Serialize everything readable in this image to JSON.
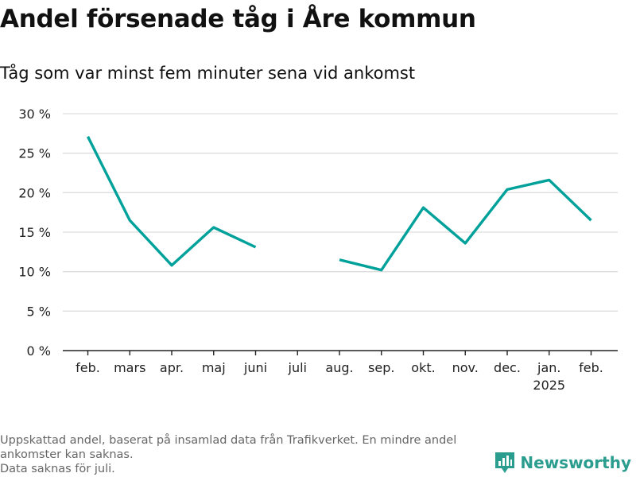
{
  "title": "Andel försenade tåg i Åre kommun",
  "subtitle": "Tåg som var minst fem minuter sena vid ankomst",
  "footnote": {
    "line1": "Uppskattad andel, baserat på insamlad data från Trafikverket. En mindre andel",
    "line2": "ankomster kan saknas.",
    "line3": "Data saknas för juli."
  },
  "brand": {
    "name": "Newsworthy",
    "icon": "bar-chart-logo-icon"
  },
  "colors": {
    "line": "#00a19a",
    "grid": "#dddddd",
    "axis": "#222222",
    "brand": "#2a9d8f"
  },
  "chart_data": {
    "type": "line",
    "categories": [
      "feb.",
      "mars",
      "apr.",
      "maj",
      "juni",
      "juli",
      "aug.",
      "sep.",
      "okt.",
      "nov.",
      "dec.",
      "jan.",
      "feb."
    ],
    "category_sublabels": [
      "",
      "",
      "",
      "",
      "",
      "",
      "",
      "",
      "",
      "",
      "",
      "2025",
      ""
    ],
    "series": [
      {
        "values": [
          27.1,
          16.5,
          10.8,
          15.6,
          13.1,
          null,
          11.5,
          10.2,
          18.1,
          13.6,
          20.4,
          21.6,
          16.5
        ]
      }
    ],
    "ylim": [
      0,
      30
    ],
    "yticks": [
      0,
      5,
      10,
      15,
      20,
      25,
      30
    ],
    "ytick_labels": [
      "0 %",
      "5 %",
      "10 %",
      "15 %",
      "20 %",
      "25 %",
      "30 %"
    ],
    "grid": true,
    "legend": "none"
  }
}
